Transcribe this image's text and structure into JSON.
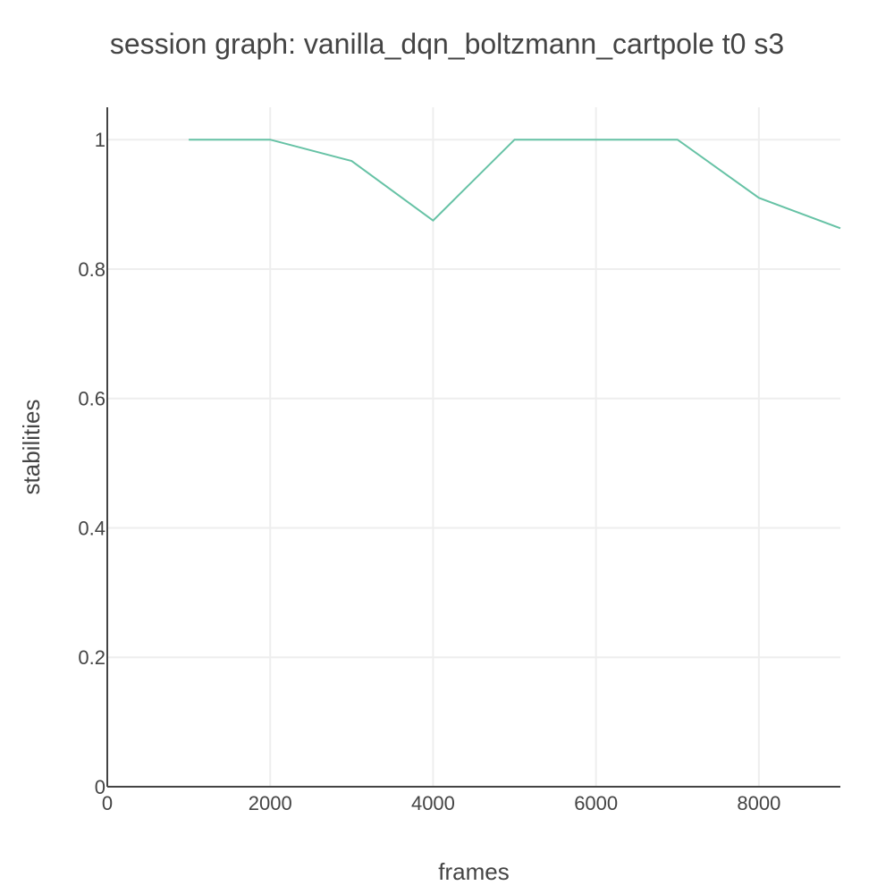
{
  "chart_data": {
    "type": "line",
    "title": "session graph: vanilla_dqn_boltzmann_cartpole t0 s3",
    "xlabel": "frames",
    "ylabel": "stabilities",
    "xlim": [
      0,
      9000
    ],
    "ylim": [
      0,
      1.05
    ],
    "x_ticks": [
      0,
      2000,
      4000,
      6000,
      8000
    ],
    "y_ticks": [
      0,
      0.2,
      0.4,
      0.6,
      0.8,
      1
    ],
    "x_tick_labels": [
      "0",
      "2000",
      "4000",
      "6000",
      "8000"
    ],
    "y_tick_labels": [
      "0",
      "0.2",
      "0.4",
      "0.6",
      "0.8",
      "1"
    ],
    "grid": true,
    "legend": "none",
    "series": [
      {
        "color": "#66c2a5",
        "x": [
          1000,
          2000,
          3000,
          4000,
          5000,
          6000,
          7000,
          8000,
          9000
        ],
        "y": [
          1.0,
          1.0,
          0.967,
          0.875,
          1.0,
          1.0,
          1.0,
          0.91,
          0.863
        ]
      }
    ]
  }
}
